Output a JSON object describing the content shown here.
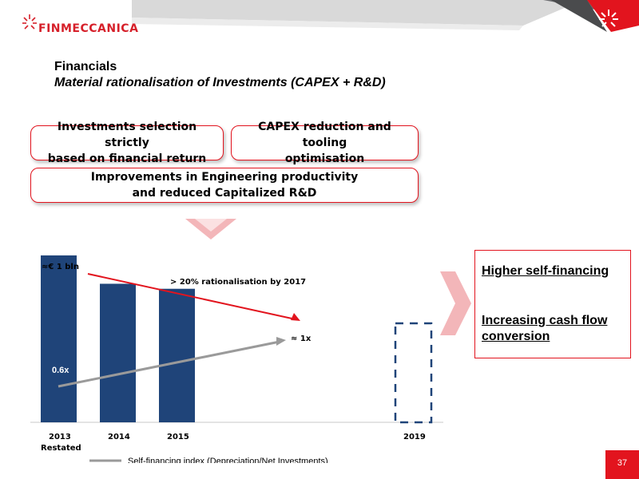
{
  "brand": {
    "name": "FINMECCANICA",
    "accent": "#e2141e",
    "bar_color": "#1f4479"
  },
  "header": {
    "title": "Financials",
    "subtitle": "Material rationalisation of Investments (CAPEX + R&D)"
  },
  "callouts": [
    {
      "line1": "Investments selection strictly",
      "line2": "based on financial return"
    },
    {
      "line1": "CAPEX reduction and tooling",
      "line2": "optimisation"
    },
    {
      "line1": "Improvements in Engineering productivity",
      "line2": "and reduced Capitalized R&D"
    }
  ],
  "chart_data": {
    "type": "bar",
    "categories": [
      "2013 Restated",
      "2014",
      "2015",
      "2019"
    ],
    "category_labels": [
      {
        "line1": "2013",
        "line2": "Restated"
      },
      {
        "line1": "2014",
        "line2": ""
      },
      {
        "line1": "2015",
        "line2": ""
      },
      {
        "line1": "2019",
        "line2": ""
      }
    ],
    "values": [
      1.0,
      0.83,
      0.8,
      null
    ],
    "projected": [
      false,
      false,
      false,
      true
    ],
    "unit_label": "≈€ 1 bln",
    "trend_annotation": "> 20% rationalisation by 2017",
    "series": [
      {
        "name": "Self-financing index (Depreciation/Net Investments)",
        "type": "line",
        "start": 0.6,
        "end": 1.0,
        "start_label": "0.6x",
        "end_label": "≈ 1x"
      }
    ],
    "ylim": [
      0,
      1.1
    ],
    "grid": false,
    "legend_position": "bottom-left"
  },
  "results": {
    "item1": "Higher self-financing",
    "item2": "Increasing cash flow conversion"
  },
  "page_number": "37"
}
